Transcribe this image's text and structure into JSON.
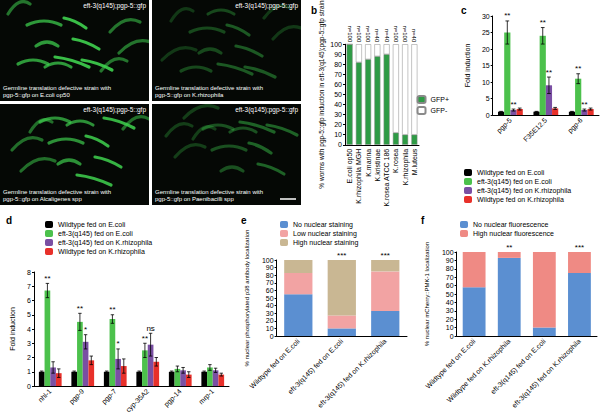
{
  "panel_a": {
    "images": [
      {
        "title": "eft-3(q145);pgp-5::gfp",
        "caption": "Germline translation defective strain with pgp-5::gfp on E.coli op50"
      },
      {
        "title": "eft-3(q145);pgp-5::gfp",
        "caption": "Germline translation defective strain with pgp-5::gfp on K.rhizophila"
      },
      {
        "title": "eft-3(q145);pgp-5::gfp",
        "caption": "Germline translation defective strain with pgp-5::gfp on Alcaligenes spp"
      },
      {
        "title": "eft-3(q145);pgp-5::gfp",
        "caption": "Germline translation defective strain with pgp-5::gfp on Paenibacilli spp"
      }
    ]
  },
  "chart_data": [
    {
      "panel": "b",
      "type": "bar",
      "stacked": true,
      "grid": false,
      "legend": "right",
      "y_label": "% worms with pgp-5::gfp induction in eft-3(q145);pgp-5::gfp strain",
      "categories": [
        "E.coli op50",
        "K.rhizophila MGH",
        "K.marina",
        "K.kristinae",
        "K.rosea ATCC 186",
        "K.rosea",
        "K.rhizophila",
        "M.luteus"
      ],
      "n_labels": [
        "n=100",
        "n=100",
        "n=100",
        "n=40",
        "n=40",
        "n=100",
        "n=100",
        "n=40"
      ],
      "series": [
        {
          "name": "GFP+",
          "color": "#2e9b45",
          "values": [
            100,
            82,
            85,
            88,
            90,
            12,
            10,
            10
          ]
        },
        {
          "name": "GFP-",
          "color": "#ffffff",
          "values": [
            0,
            18,
            15,
            12,
            10,
            88,
            90,
            90
          ]
        }
      ],
      "ylim": [
        0,
        100
      ],
      "yticks": [
        0,
        10,
        20,
        30,
        40,
        50,
        60,
        70,
        80,
        90,
        100
      ]
    },
    {
      "panel": "c",
      "type": "bar",
      "grid": false,
      "legend": "bottom",
      "y_label": "Fold induction",
      "categories": [
        "pgp-5",
        "F35E12.5",
        "pgp-6"
      ],
      "series": [
        {
          "name": "Wildtype fed on E.coli",
          "color": "#000000",
          "values": [
            1,
            1,
            1
          ],
          "errors": [
            0.1,
            0.1,
            0.1
          ]
        },
        {
          "name": "eft-3(q145) fed on E.coli",
          "color": "#4cc14c",
          "values": [
            25,
            24,
            11
          ],
          "errors": [
            3.5,
            2.5,
            1.5
          ]
        },
        {
          "name": "eft-3(q145) fed on K.rhizophila",
          "color": "#7a4fa3",
          "values": [
            1.5,
            9,
            1.5
          ],
          "errors": [
            0.3,
            2.5,
            0.3
          ]
        },
        {
          "name": "Wildtype fed on K.rhizophila",
          "color": "#e8302a",
          "values": [
            1.8,
            2,
            1.8
          ],
          "errors": [
            0.3,
            0.3,
            0.3
          ]
        }
      ],
      "annotations": [
        {
          "category": "pgp-5",
          "series": "eft-3(q145) fed on E.coli",
          "text": "**"
        },
        {
          "category": "pgp-5",
          "series": "eft-3(q145) fed on K.rhizophila",
          "text": "**"
        },
        {
          "category": "F35E12.5",
          "series": "eft-3(q145) fed on E.coli",
          "text": "**"
        },
        {
          "category": "F35E12.5",
          "series": "eft-3(q145) fed on K.rhizophila",
          "text": "**"
        },
        {
          "category": "pgp-6",
          "series": "eft-3(q145) fed on E.coli",
          "text": "**"
        },
        {
          "category": "pgp-6",
          "series": "eft-3(q145) fed on K.rhizophila",
          "text": "**"
        }
      ],
      "ylim": [
        0,
        30
      ],
      "yticks": [
        0,
        5,
        10,
        15,
        20,
        25,
        30
      ]
    },
    {
      "panel": "d",
      "type": "bar",
      "grid": false,
      "legend": "top",
      "y_label": "Fold induction",
      "categories": [
        "nhl-1",
        "pgp-9",
        "pgp-7",
        "cyp-35A2",
        "pgp-14",
        "mrp-1"
      ],
      "series": [
        {
          "name": "Wildtype fed on E.coli",
          "color": "#000000",
          "values": [
            1,
            1,
            1,
            1,
            1,
            1
          ],
          "errors": [
            0.05,
            0.05,
            0.05,
            0.05,
            0.05,
            0.05
          ]
        },
        {
          "name": "eft-3(q145) fed on E.coli",
          "color": "#4cc14c",
          "values": [
            6.7,
            4.5,
            4.7,
            2.5,
            1.2,
            1.3
          ],
          "errors": [
            0.5,
            0.6,
            0.3,
            0.5,
            0.2,
            0.2
          ]
        },
        {
          "name": "eft-3(q145) fed on K.rhizophila",
          "color": "#7a4fa3",
          "values": [
            1.3,
            3.1,
            1.9,
            2.9,
            1.1,
            1.1
          ],
          "errors": [
            0.4,
            0.5,
            0.7,
            0.8,
            0.2,
            0.15
          ]
        },
        {
          "name": "Wildtype fed on K.rhizophila",
          "color": "#e8302a",
          "values": [
            0.9,
            1.8,
            1.4,
            1.7,
            0.8,
            0.8
          ],
          "errors": [
            0.3,
            0.3,
            0.5,
            0.3,
            0.2,
            0.1
          ]
        }
      ],
      "annotations": [
        {
          "category": "nhl-1",
          "series": "eft-3(q145) fed on E.coli",
          "text": "**"
        },
        {
          "category": "pgp-9",
          "series": "eft-3(q145) fed on E.coli",
          "text": "**"
        },
        {
          "category": "pgp-9",
          "series": "eft-3(q145) fed on K.rhizophila",
          "text": "*"
        },
        {
          "category": "pgp-7",
          "series": "eft-3(q145) fed on E.coli",
          "text": "**"
        },
        {
          "category": "pgp-7",
          "series": "eft-3(q145) fed on K.rhizophila",
          "text": "*"
        },
        {
          "category": "cyp-35A2",
          "series": "eft-3(q145) fed on E.coli",
          "text": "**"
        },
        {
          "category": "cyp-35A2",
          "series": "eft-3(q145) fed on K.rhizophila",
          "text": "ns"
        }
      ],
      "ylim": [
        0,
        8
      ],
      "yticks": [
        0,
        1,
        2,
        3,
        4,
        5,
        6,
        7,
        8
      ]
    },
    {
      "panel": "e",
      "type": "bar",
      "stacked": true,
      "grid": false,
      "legend": "top",
      "y_label": "% nuclear phosphorylated p38 antibody localization",
      "categories": [
        "Wildtype fed on E.coli",
        "eft-3(q145) fed on E.coli",
        "eft-3(q145) fed on K.rhizophila"
      ],
      "series": [
        {
          "name": "No nuclear staining",
          "color": "#5b8fd1",
          "values": [
            55,
            10,
            33
          ]
        },
        {
          "name": "Low nuclear staining",
          "color": "#f2a3a3",
          "values": [
            28,
            17,
            52
          ]
        },
        {
          "name": "High nuclear staining",
          "color": "#c9b793",
          "values": [
            17,
            73,
            15
          ]
        }
      ],
      "annotations": [
        {
          "category": "eft-3(q145) fed on E.coli",
          "text": "***"
        },
        {
          "category": "eft-3(q145) fed on K.rhizophila",
          "text": "***"
        }
      ],
      "ylim": [
        0,
        100
      ],
      "yticks": [
        0,
        10,
        20,
        30,
        40,
        50,
        60,
        70,
        80,
        90,
        100
      ]
    },
    {
      "panel": "f",
      "type": "bar",
      "stacked": true,
      "grid": false,
      "legend": "top",
      "y_label": "% nuclear mCherry::PMK-1 localization",
      "categories": [
        "Wildtype fed on E.coli",
        "Wildtype fed on K.rhizophila",
        "eft-3(q145) fed on E.coli",
        "eft-3(q145) fed on K.rhizophila"
      ],
      "series": [
        {
          "name": "No nuclear fluorescence",
          "color": "#5b8fd1",
          "values": [
            58,
            93,
            10,
            75
          ]
        },
        {
          "name": "High nuclear fluorescence",
          "color": "#ef8a84",
          "values": [
            42,
            7,
            90,
            25
          ]
        }
      ],
      "annotations": [
        {
          "category": "Wildtype fed on K.rhizophila",
          "text": "**"
        },
        {
          "category": "eft-3(q145) fed on K.rhizophila",
          "text": "***"
        }
      ],
      "ylim": [
        0,
        100
      ],
      "yticks": [
        0,
        10,
        20,
        30,
        40,
        50,
        60,
        70,
        80,
        90,
        100
      ]
    }
  ]
}
